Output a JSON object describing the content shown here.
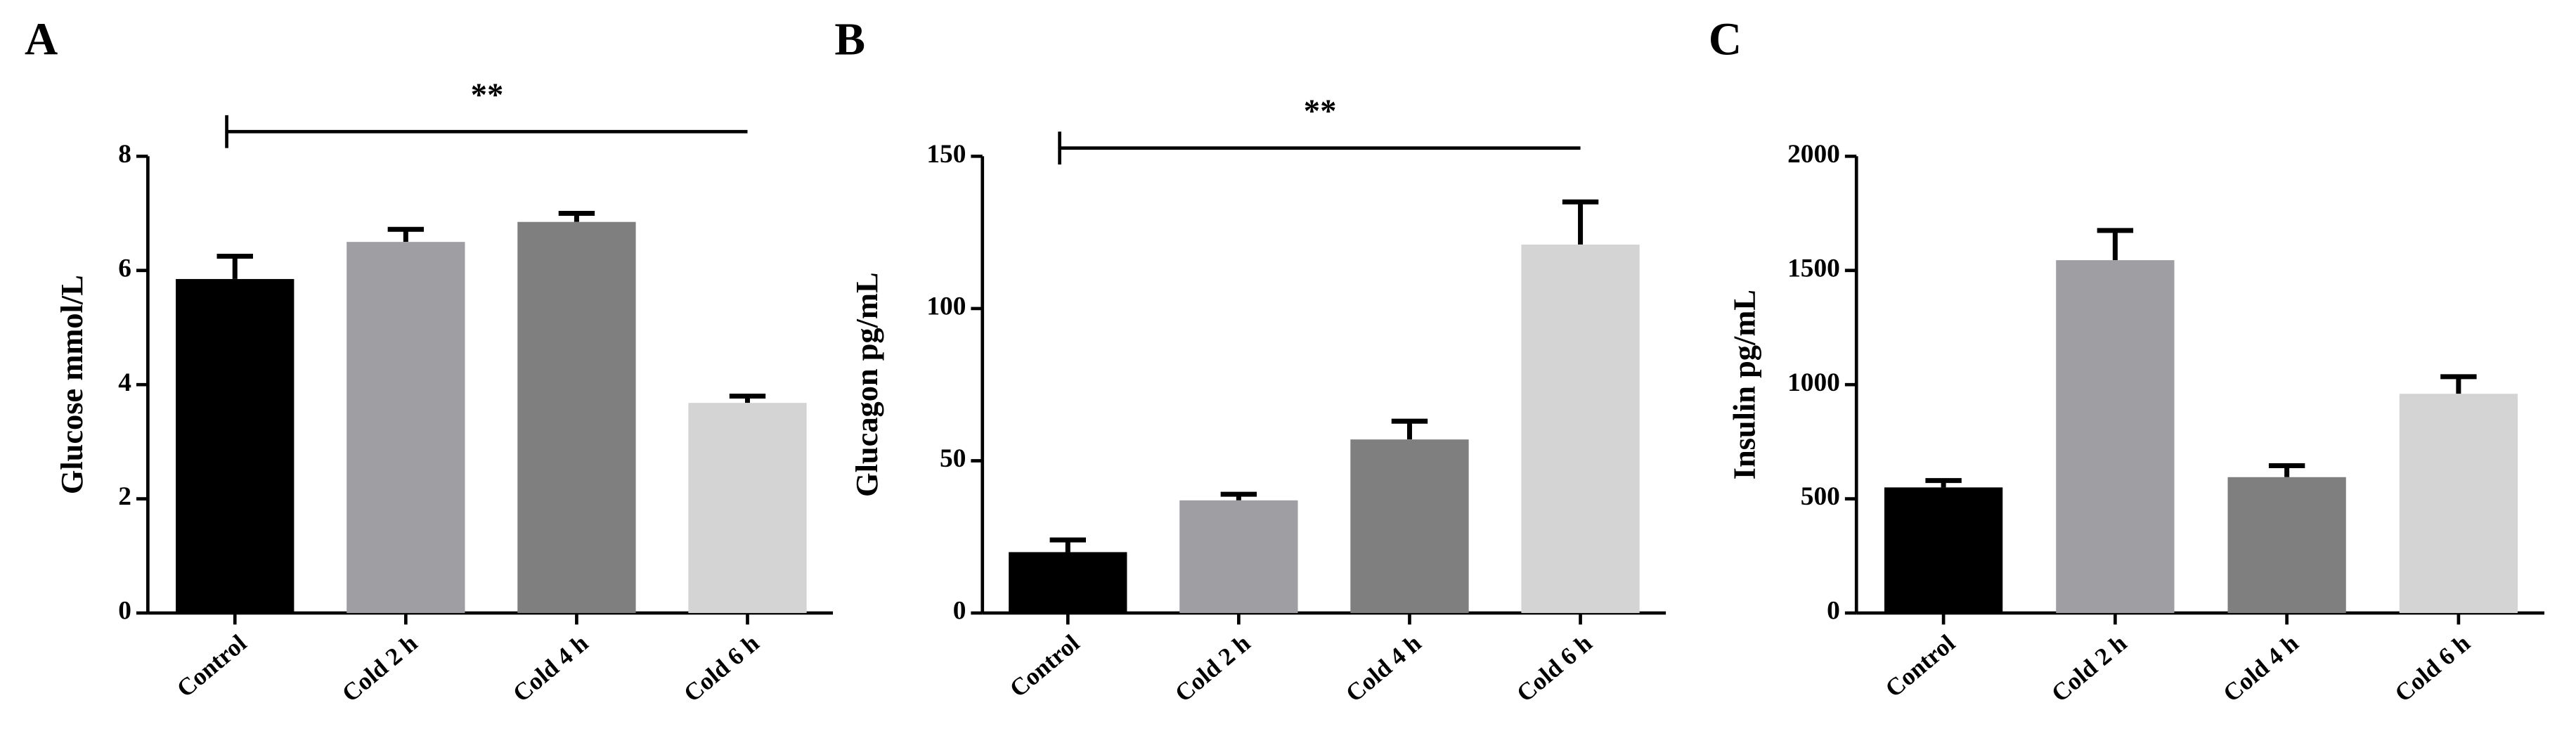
{
  "chart_data": [
    {
      "type": "bar",
      "panel_label": "A",
      "ylabel": "Glucose mmol/L",
      "categories": [
        "Control",
        "Cold 2 h",
        "Cold 4 h",
        "Cold 6 h"
      ],
      "values": [
        5.85,
        6.5,
        6.85,
        3.68
      ],
      "errors": [
        0.4,
        0.22,
        0.15,
        0.12
      ],
      "colors": [
        "#000000",
        "#9e9ea3",
        "#7f7f7f",
        "#d4d4d4"
      ],
      "ylim": [
        0,
        8
      ],
      "yticks": [
        0,
        2,
        4,
        6,
        8
      ],
      "annotation": "**"
    },
    {
      "type": "bar",
      "panel_label": "B",
      "ylabel": "Glucagon pg/mL",
      "categories": [
        "Control",
        "Cold 2 h",
        "Cold 4 h",
        "Cold 6 h"
      ],
      "values": [
        20,
        37,
        57,
        121
      ],
      "errors": [
        4,
        2,
        6,
        14
      ],
      "colors": [
        "#000000",
        "#9e9ea3",
        "#7f7f7f",
        "#d4d4d4"
      ],
      "ylim": [
        0,
        150
      ],
      "yticks": [
        0,
        50,
        100,
        150
      ],
      "annotation": "**"
    },
    {
      "type": "bar",
      "panel_label": "C",
      "ylabel": "Insulin pg/mL",
      "categories": [
        "Control",
        "Cold 2 h",
        "Cold 4 h",
        "Cold 6 h"
      ],
      "values": [
        550,
        1545,
        595,
        960
      ],
      "errors": [
        30,
        130,
        50,
        75
      ],
      "colors": [
        "#000000",
        "#9e9ea3",
        "#7f7f7f",
        "#d4d4d4"
      ],
      "ylim": [
        0,
        2000
      ],
      "yticks": [
        0,
        500,
        1000,
        1500,
        2000
      ]
    }
  ]
}
